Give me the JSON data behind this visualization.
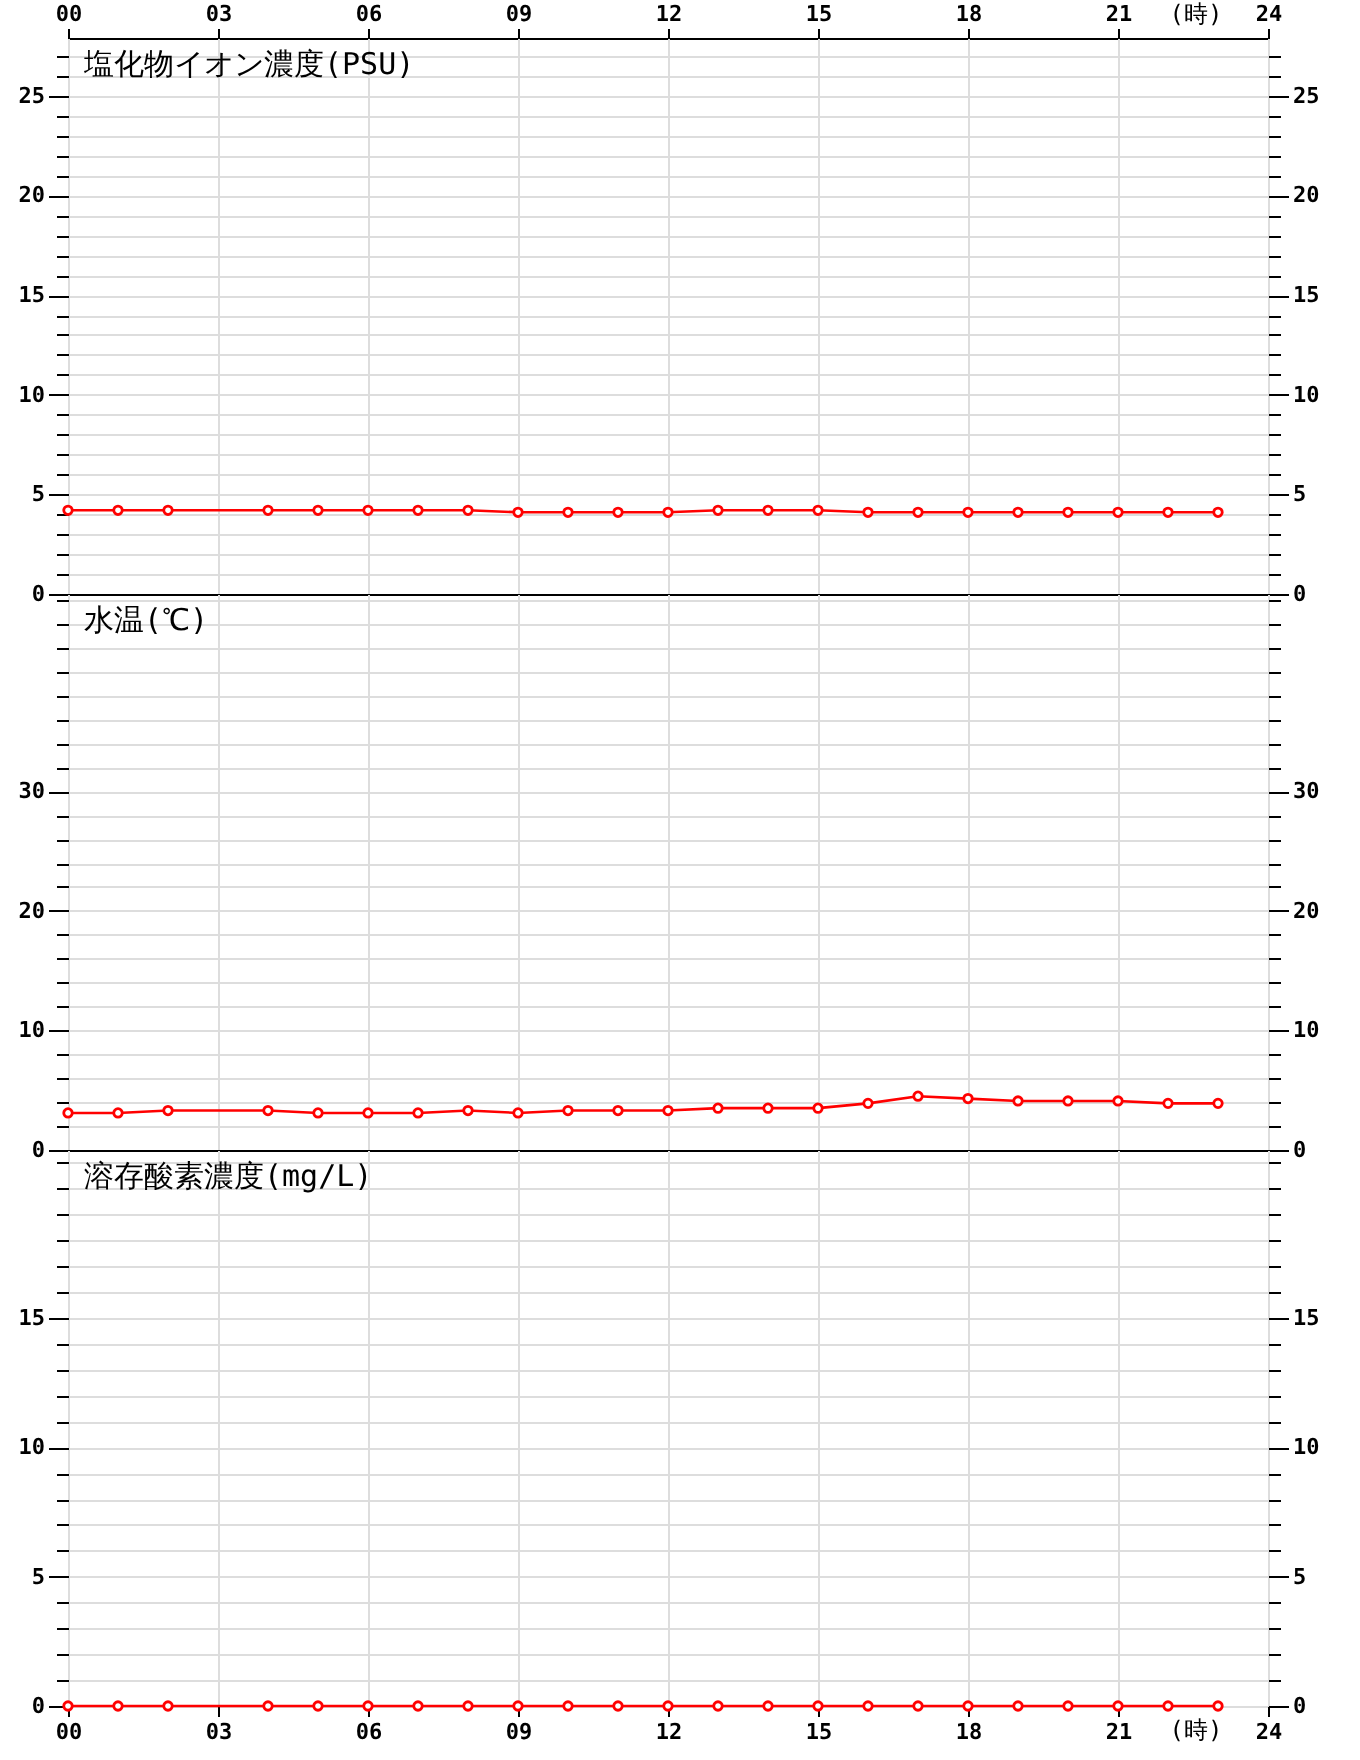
{
  "chart_data": [
    {
      "type": "line",
      "title": "塩化物イオン濃度(PSU)",
      "x": [
        0,
        1,
        2,
        4,
        5,
        6,
        7,
        8,
        9,
        10,
        11,
        12,
        13,
        14,
        15,
        16,
        17,
        18,
        19,
        20,
        21,
        22,
        23
      ],
      "xlim": [
        0,
        24
      ],
      "xticks": [
        0,
        3,
        6,
        9,
        12,
        15,
        18,
        21,
        24
      ],
      "x2lim": [
        0,
        24
      ],
      "x2ticks": [
        {
          "value": 0,
          "label": "00"
        },
        {
          "value": 3,
          "label": "03"
        },
        {
          "value": 6,
          "label": "06"
        },
        {
          "value": 9,
          "label": "09"
        },
        12,
        15,
        18,
        21,
        24
      ],
      "x2label": "(時)",
      "ylim": [
        0,
        27.9
      ],
      "yticks": [
        0,
        {
          "value": 1,
          "label": null
        },
        {
          "value": 2,
          "label": null
        },
        {
          "value": 3,
          "label": null
        },
        {
          "value": 4,
          "label": null
        },
        5,
        {
          "value": 6,
          "label": null
        },
        {
          "value": 7,
          "label": null
        },
        {
          "value": 8,
          "label": null
        },
        {
          "value": 9,
          "label": null
        },
        10,
        {
          "value": 11,
          "label": null
        },
        {
          "value": 12,
          "label": null
        },
        {
          "value": 13,
          "label": null
        },
        {
          "value": 14,
          "label": null
        },
        15,
        {
          "value": 16,
          "label": null
        },
        {
          "value": 17,
          "label": null
        },
        {
          "value": 18,
          "label": null
        },
        {
          "value": 19,
          "label": null
        },
        20,
        {
          "value": 21,
          "label": null
        },
        {
          "value": 22,
          "label": null
        },
        {
          "value": 23,
          "label": null
        },
        {
          "value": 24,
          "label": null
        },
        25,
        {
          "value": 26,
          "label": null
        },
        {
          "value": 27,
          "label": null
        }
      ],
      "y2lim": [
        0,
        27.9
      ],
      "y2ticks": [
        0,
        {
          "value": 1,
          "label": null
        },
        {
          "value": 2,
          "label": null
        },
        {
          "value": 3,
          "label": null
        },
        {
          "value": 4,
          "label": null
        },
        5,
        {
          "value": 6,
          "label": null
        },
        {
          "value": 7,
          "label": null
        },
        {
          "value": 8,
          "label": null
        },
        {
          "value": 9,
          "label": null
        },
        10,
        {
          "value": 11,
          "label": null
        },
        {
          "value": 12,
          "label": null
        },
        {
          "value": 13,
          "label": null
        },
        {
          "value": 14,
          "label": null
        },
        15,
        {
          "value": 16,
          "label": null
        },
        {
          "value": 17,
          "label": null
        },
        {
          "value": 18,
          "label": null
        },
        {
          "value": 19,
          "label": null
        },
        20,
        {
          "value": 21,
          "label": null
        },
        {
          "value": 22,
          "label": null
        },
        {
          "value": 23,
          "label": null
        },
        {
          "value": 24,
          "label": null
        },
        25,
        {
          "value": 26,
          "label": null
        },
        {
          "value": 27,
          "label": null
        }
      ],
      "tick_labels": "y",
      "grid": true,
      "marker": "circle",
      "series": [
        {
          "color": "#ff0000",
          "values": [
            4.2,
            4.2,
            4.2,
            4.2,
            4.2,
            4.2,
            4.2,
            4.2,
            4.1,
            4.1,
            4.1,
            4.1,
            4.2,
            4.2,
            4.2,
            4.1,
            4.1,
            4.1,
            4.1,
            4.1,
            4.1,
            4.1,
            4.1
          ]
        }
      ]
    },
    {
      "type": "line",
      "title": "水温(℃)",
      "x": [
        0,
        1,
        2,
        4,
        5,
        6,
        7,
        8,
        9,
        10,
        11,
        12,
        13,
        14,
        15,
        16,
        17,
        18,
        19,
        20,
        21,
        22,
        23
      ],
      "xlim": [
        0,
        24
      ],
      "xticks": [
        0,
        3,
        6,
        9,
        12,
        15,
        18,
        21,
        24
      ],
      "ylim": [
        0,
        46.5
      ],
      "yticks": [
        0,
        {
          "value": 2,
          "label": null
        },
        {
          "value": 4,
          "label": null
        },
        {
          "value": 6,
          "label": null
        },
        {
          "value": 8,
          "label": null
        },
        10,
        {
          "value": 12,
          "label": null
        },
        {
          "value": 14,
          "label": null
        },
        {
          "value": 16,
          "label": null
        },
        {
          "value": 18,
          "label": null
        },
        20,
        {
          "value": 22,
          "label": null
        },
        {
          "value": 24,
          "label": null
        },
        {
          "value": 26,
          "label": null
        },
        {
          "value": 28,
          "label": null
        },
        30,
        {
          "value": 32,
          "label": null
        },
        {
          "value": 34,
          "label": null
        },
        {
          "value": 36,
          "label": null
        },
        {
          "value": 38,
          "label": null
        },
        {
          "value": 40,
          "label": null
        },
        {
          "value": 42,
          "label": null
        },
        {
          "value": 44,
          "label": null
        },
        {
          "value": 46,
          "label": null
        }
      ],
      "y2lim": [
        0,
        46.5
      ],
      "y2ticks": [
        0,
        {
          "value": 2,
          "label": null
        },
        {
          "value": 4,
          "label": null
        },
        {
          "value": 6,
          "label": null
        },
        {
          "value": 8,
          "label": null
        },
        10,
        {
          "value": 12,
          "label": null
        },
        {
          "value": 14,
          "label": null
        },
        {
          "value": 16,
          "label": null
        },
        {
          "value": 18,
          "label": null
        },
        20,
        {
          "value": 22,
          "label": null
        },
        {
          "value": 24,
          "label": null
        },
        {
          "value": 26,
          "label": null
        },
        {
          "value": 28,
          "label": null
        },
        30,
        {
          "value": 32,
          "label": null
        },
        {
          "value": 34,
          "label": null
        },
        {
          "value": 36,
          "label": null
        },
        {
          "value": 38,
          "label": null
        },
        {
          "value": 40,
          "label": null
        },
        {
          "value": 42,
          "label": null
        },
        {
          "value": 44,
          "label": null
        },
        {
          "value": 46,
          "label": null
        }
      ],
      "tick_labels": "y",
      "grid": true,
      "marker": "circle",
      "series": [
        {
          "color": "#ff0000",
          "values": [
            3.1,
            3.1,
            3.3,
            3.3,
            3.1,
            3.1,
            3.1,
            3.3,
            3.1,
            3.3,
            3.3,
            3.3,
            3.5,
            3.5,
            3.5,
            3.9,
            4.5,
            4.3,
            4.1,
            4.1,
            4.1,
            3.9,
            3.9
          ]
        }
      ]
    },
    {
      "type": "line",
      "title": "溶存酸素濃度(mg/L)",
      "x": [
        0,
        1,
        2,
        4,
        5,
        6,
        7,
        8,
        9,
        10,
        11,
        12,
        13,
        14,
        15,
        16,
        17,
        18,
        19,
        20,
        21,
        22,
        23
      ],
      "xlim": [
        0,
        24
      ],
      "xticks": [
        {
          "value": 0,
          "label": "00"
        },
        {
          "value": 3,
          "label": "03"
        },
        {
          "value": 6,
          "label": "06"
        },
        {
          "value": 9,
          "label": "09"
        },
        12,
        15,
        18,
        21,
        24
      ],
      "xlabel": "(時)",
      "ylim": [
        0,
        21.5
      ],
      "yticks": [
        0,
        {
          "value": 1,
          "label": null
        },
        {
          "value": 2,
          "label": null
        },
        {
          "value": 3,
          "label": null
        },
        {
          "value": 4,
          "label": null
        },
        5,
        {
          "value": 6,
          "label": null
        },
        {
          "value": 7,
          "label": null
        },
        {
          "value": 8,
          "label": null
        },
        {
          "value": 9,
          "label": null
        },
        10,
        {
          "value": 11,
          "label": null
        },
        {
          "value": 12,
          "label": null
        },
        {
          "value": 13,
          "label": null
        },
        {
          "value": 14,
          "label": null
        },
        15,
        {
          "value": 16,
          "label": null
        },
        {
          "value": 17,
          "label": null
        },
        {
          "value": 18,
          "label": null
        },
        {
          "value": 19,
          "label": null
        },
        {
          "value": 20,
          "label": null
        },
        {
          "value": 21,
          "label": null
        }
      ],
      "y2lim": [
        0,
        21.5
      ],
      "y2ticks": [
        0,
        {
          "value": 1,
          "label": null
        },
        {
          "value": 2,
          "label": null
        },
        {
          "value": 3,
          "label": null
        },
        {
          "value": 4,
          "label": null
        },
        5,
        {
          "value": 6,
          "label": null
        },
        {
          "value": 7,
          "label": null
        },
        {
          "value": 8,
          "label": null
        },
        {
          "value": 9,
          "label": null
        },
        10,
        {
          "value": 11,
          "label": null
        },
        {
          "value": 12,
          "label": null
        },
        {
          "value": 13,
          "label": null
        },
        {
          "value": 14,
          "label": null
        },
        15,
        {
          "value": 16,
          "label": null
        },
        {
          "value": 17,
          "label": null
        },
        {
          "value": 18,
          "label": null
        },
        {
          "value": 19,
          "label": null
        },
        {
          "value": 20,
          "label": null
        },
        {
          "value": 21,
          "label": null
        }
      ],
      "grid": true,
      "marker": "circle",
      "series": [
        {
          "color": "#ff0000",
          "values": [
            0,
            0,
            0,
            0,
            0,
            0,
            0,
            0,
            0,
            0,
            0,
            0,
            0,
            0,
            0,
            0,
            0,
            0,
            0,
            0,
            0,
            0,
            0
          ]
        }
      ]
    }
  ]
}
